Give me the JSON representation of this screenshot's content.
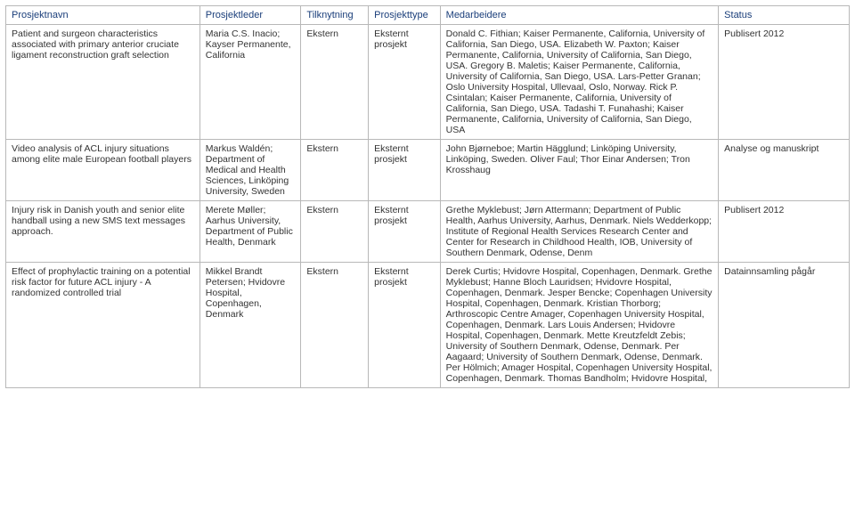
{
  "columns": [
    "Prosjektnavn",
    "Prosjektleder",
    "Tilknytning",
    "Prosjekttype",
    "Medarbeidere",
    "Status"
  ],
  "rows": [
    {
      "name": "Patient and surgeon characteristics associated with primary anterior cruciate ligament reconstruction graft selection",
      "leader": "Maria C.S. Inacio; Kayser Permanente, California",
      "tilknytning": "Ekstern",
      "type": "Eksternt prosjekt",
      "medarbeidere": "Donald C. Fithian; Kaiser Permanente, California, University of California, San Diego, USA. Elizabeth W. Paxton; Kaiser Permanente, California, University of California, San Diego, USA. Gregory B. Maletis; Kaiser Permanente, California, University of California, San Diego, USA. Lars-Petter Granan; Oslo University Hospital, Ullevaal, Oslo, Norway. Rick P. Csintalan; Kaiser Permanente, California, University of California, San Diego, USA. Tadashi T. Funahashi; Kaiser Permanente, California, University of California, San Diego, USA",
      "status": "Publisert 2012"
    },
    {
      "name": "Video analysis of ACL injury situations among elite male European football players",
      "leader": "Markus Waldén; Department of Medical and Health Sciences, Linköping University, Sweden",
      "tilknytning": "Ekstern",
      "type": "Eksternt prosjekt",
      "medarbeidere": "John Bjørneboe; Martin Hägglund; Linköping University, Linköping, Sweden. Oliver Faul; Thor Einar Andersen; Tron Krosshaug",
      "status": "Analyse og manuskript"
    },
    {
      "name": "Injury risk in Danish youth and senior elite handball using a new SMS text messages approach.",
      "leader": "Merete Møller; Aarhus University, Department of Public Health, Denmark",
      "tilknytning": "Ekstern",
      "type": "Eksternt prosjekt",
      "medarbeidere": "Grethe Myklebust; Jørn Attermann; Department of Public Health, Aarhus University, Aarhus, Denmark. Niels Wedderkopp; Institute of Regional Health Services Research Center and Center for Research in Childhood Health, IOB, University of Southern Denmark, Odense, Denm",
      "status": "Publisert 2012"
    },
    {
      "name": "Effect of prophylactic training on a potential risk factor for future ACL injury - A randomized controlled trial",
      "leader": "Mikkel Brandt Petersen; Hvidovre Hospital, Copenhagen, Denmark",
      "tilknytning": "Ekstern",
      "type": "Eksternt prosjekt",
      "medarbeidere": "Derek Curtis; Hvidovre Hospital, Copenhagen, Denmark. Grethe Myklebust; Hanne Bloch Lauridsen; Hvidovre Hospital, Copenhagen, Denmark. Jesper Bencke; Copenhagen University Hospital, Copenhagen, Denmark. Kristian Thorborg; Arthroscopic Centre Amager, Copenhagen University Hospital, Copenhagen, Denmark. Lars Louis Andersen; Hvidovre Hospital, Copenhagen, Denmark. Mette Kreutzfeldt Zebis; University of Southern Denmark, Odense, Denmark. Per Aagaard; University of Southern Denmark, Odense, Denmark. Per Hölmich; Amager Hospital, Copenhagen University Hospital, Copenhagen, Denmark. Thomas Bandholm; Hvidovre Hospital,",
      "status": "Datainnsamling pågår"
    }
  ]
}
